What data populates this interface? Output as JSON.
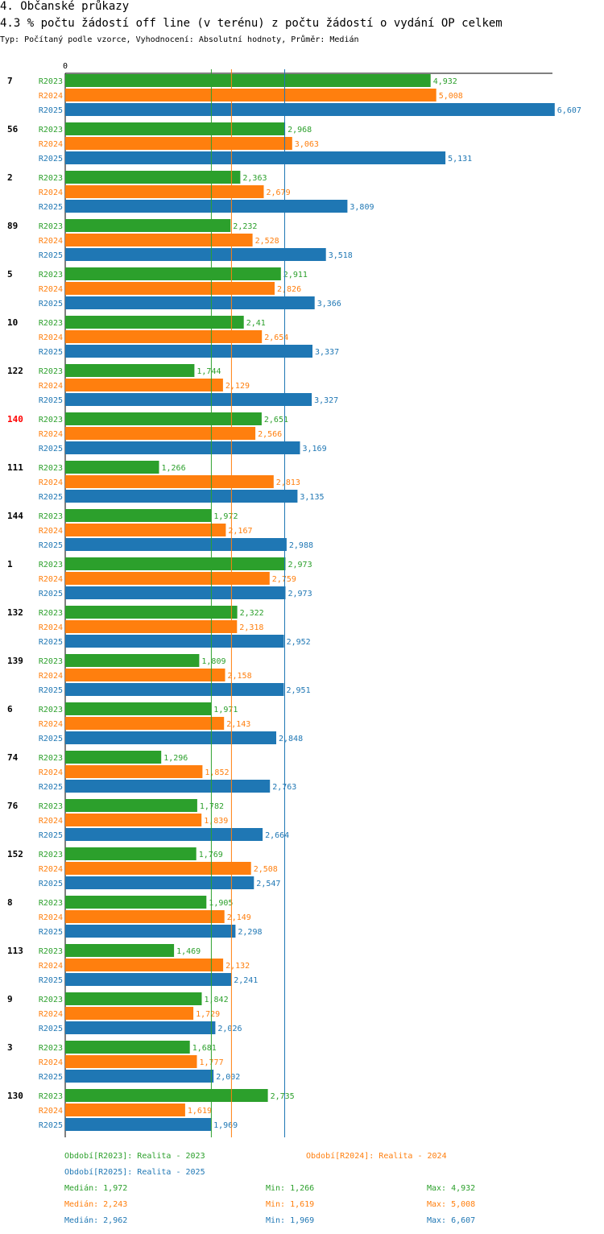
{
  "titles": {
    "section": "4. Občanské průkazy",
    "chart": "4.3 % počtu žádostí off line (v terénu) z počtu žádostí o vydání OP celkem",
    "subtitle": "Typ: Počítaný podle vzorce, Vyhodnocení: Absolutní hodnoty, Průměr: Medián"
  },
  "colors": {
    "R2023": "#2ca02c",
    "R2024": "#ff7f0e",
    "R2025": "#1f77b4",
    "highlight": "#ff0000"
  },
  "chart_data": {
    "type": "bar",
    "orientation": "horizontal",
    "title": "4.3 % počtu žádostí off line (v terénu) z počtu žádostí o vydání OP celkem",
    "axis_zero_label": "0",
    "xlim": [
      0,
      6.85
    ],
    "highlight_category": "140",
    "categories": [
      "7",
      "56",
      "2",
      "89",
      "5",
      "10",
      "122",
      "140",
      "111",
      "144",
      "1",
      "132",
      "139",
      "6",
      "74",
      "76",
      "152",
      "8",
      "113",
      "9",
      "3",
      "130"
    ],
    "series": [
      {
        "name": "R2023",
        "values": [
          4.932,
          2.968,
          2.363,
          2.232,
          2.911,
          2.41,
          1.744,
          2.651,
          1.266,
          1.972,
          2.973,
          2.322,
          1.809,
          1.971,
          1.296,
          1.782,
          1.769,
          1.905,
          1.469,
          1.842,
          1.681,
          2.735
        ],
        "labels": [
          "4,932",
          "2,968",
          "2,363",
          "2,232",
          "2,911",
          "2,41",
          "1,744",
          "2,651",
          "1,266",
          "1,972",
          "2,973",
          "2,322",
          "1,809",
          "1,971",
          "1,296",
          "1,782",
          "1,769",
          "1,905",
          "1,469",
          "1,842",
          "1,681",
          "2,735"
        ]
      },
      {
        "name": "R2024",
        "values": [
          5.008,
          3.063,
          2.679,
          2.528,
          2.826,
          2.654,
          2.129,
          2.566,
          2.813,
          2.167,
          2.759,
          2.318,
          2.158,
          2.143,
          1.852,
          1.839,
          2.508,
          2.149,
          2.132,
          1.729,
          1.777,
          1.619
        ],
        "labels": [
          "5,008",
          "3,063",
          "2,679",
          "2,528",
          "2,826",
          "2,654",
          "2,129",
          "2,566",
          "2,813",
          "2,167",
          "2,759",
          "2,318",
          "2,158",
          "2,143",
          "1,852",
          "1,839",
          "2,508",
          "2,149",
          "2,132",
          "1,729",
          "1,777",
          "1,619"
        ]
      },
      {
        "name": "R2025",
        "values": [
          6.607,
          5.131,
          3.809,
          3.518,
          3.366,
          3.337,
          3.327,
          3.169,
          3.135,
          2.988,
          2.973,
          2.952,
          2.951,
          2.848,
          2.763,
          2.664,
          2.547,
          2.298,
          2.241,
          2.026,
          2.002,
          1.969
        ],
        "labels": [
          "6,607",
          "5,131",
          "3,809",
          "3,518",
          "3,366",
          "3,337",
          "3,327",
          "3,169",
          "3,135",
          "2,988",
          "2,973",
          "2,952",
          "2,951",
          "2,848",
          "2,763",
          "2,664",
          "2,547",
          "2,298",
          "2,241",
          "2,026",
          "2,002",
          "1,969"
        ]
      }
    ],
    "median_lines": {
      "R2023": 1.972,
      "R2024": 2.243,
      "R2025": 2.962
    }
  },
  "legend": {
    "period_R2023": "Období[R2023]: Realita - 2023",
    "period_R2024": "Období[R2024]: Realita - 2024",
    "period_R2025": "Období[R2025]: Realita - 2025",
    "stats": [
      {
        "series": "R2023",
        "median": "Medián: 1,972",
        "min": "Min: 1,266",
        "max": "Max: 4,932"
      },
      {
        "series": "R2024",
        "median": "Medián: 2,243",
        "min": "Min: 1,619",
        "max": "Max: 5,008"
      },
      {
        "series": "R2025",
        "median": "Medián: 2,962",
        "min": "Min: 1,969",
        "max": "Max: 6,607"
      }
    ]
  }
}
